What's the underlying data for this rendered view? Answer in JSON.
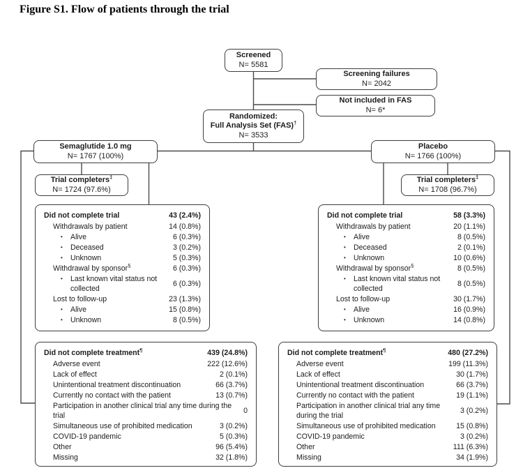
{
  "title": "Figure S1. Flow of patients through the trial",
  "flow": {
    "screened": {
      "title": "Screened",
      "n": "N= 5581"
    },
    "screening_failures": {
      "title": "Screening failures",
      "n": "N= 2042"
    },
    "not_in_fas": {
      "title": "Not included in FAS",
      "n": "N= 6*"
    },
    "randomized": {
      "title": "Randomized:",
      "subtitle": "Full Analysis Set (FAS)†",
      "n": "N= 3533"
    },
    "semaglutide": {
      "title": "Semaglutide 1.0 mg",
      "n": "N= 1767 (100%)"
    },
    "placebo": {
      "title": "Placebo",
      "n": "N= 1766 (100%)"
    },
    "completers_semaglutide": {
      "title": "Trial completers‡",
      "n": "N= 1724 (97.6%)"
    },
    "completers_placebo": {
      "title": "Trial completers‡",
      "n": "N= 1708 (96.7%)"
    },
    "not_complete_trial_semaglutide": {
      "header": {
        "label": "Did not complete trial",
        "value": "43 (2.4%)"
      },
      "rows": [
        {
          "label": "Withdrawals by patient",
          "value": "14 (0.8%)",
          "indent": 1
        },
        {
          "label": "Alive",
          "value": "6 (0.3%)",
          "indent": 2
        },
        {
          "label": "Deceased",
          "value": "3 (0.2%)",
          "indent": 2
        },
        {
          "label": "Unknown",
          "value": "5 (0.3%)",
          "indent": 2
        },
        {
          "label": "Withdrawal by sponsor§",
          "value": "6 (0.3%)",
          "indent": 1
        },
        {
          "label": "Last known vital status not collected",
          "value": "6 (0.3%)",
          "indent": 2
        },
        {
          "label": "Lost to follow-up",
          "value": "23 (1.3%)",
          "indent": 1
        },
        {
          "label": "Alive",
          "value": "15 (0.8%)",
          "indent": 2
        },
        {
          "label": "Unknown",
          "value": "8 (0.5%)",
          "indent": 2
        }
      ]
    },
    "not_complete_trial_placebo": {
      "header": {
        "label": "Did not complete trial",
        "value": "58 (3.3%)"
      },
      "rows": [
        {
          "label": "Withdrawals by patient",
          "value": "20 (1.1%)",
          "indent": 1
        },
        {
          "label": "Alive",
          "value": "8 (0.5%)",
          "indent": 2
        },
        {
          "label": "Deceased",
          "value": "2 (0.1%)",
          "indent": 2
        },
        {
          "label": "Unknown",
          "value": "10 (0.6%)",
          "indent": 2
        },
        {
          "label": "Withdrawal by sponsor§",
          "value": "8 (0.5%)",
          "indent": 1
        },
        {
          "label": "Last known vital status not collected",
          "value": "8 (0.5%)",
          "indent": 2
        },
        {
          "label": "Lost to follow-up",
          "value": "30 (1.7%)",
          "indent": 1
        },
        {
          "label": "Alive",
          "value": "16 (0.9%)",
          "indent": 2
        },
        {
          "label": "Unknown",
          "value": "14 (0.8%)",
          "indent": 2
        }
      ]
    },
    "not_complete_treatment_semaglutide": {
      "header": {
        "label": "Did not complete treatment¶",
        "value": "439 (24.8%)"
      },
      "rows": [
        {
          "label": "Adverse event",
          "value": "222 (12.6%)",
          "indent": 1
        },
        {
          "label": "Lack of effect",
          "value": "2 (0.1%)",
          "indent": 1
        },
        {
          "label": "Unintentional treatment discontinuation",
          "value": "66 (3.7%)",
          "indent": 1
        },
        {
          "label": "Currently no contact with the patient",
          "value": "13 (0.7%)",
          "indent": 1
        },
        {
          "label": "Participation in another clinical trial any time during the trial",
          "value": "0",
          "indent": 1
        },
        {
          "label": "Simultaneous use of prohibited medication",
          "value": "3 (0.2%)",
          "indent": 1
        },
        {
          "label": "COVID-19 pandemic",
          "value": "5 (0.3%)",
          "indent": 1
        },
        {
          "label": "Other",
          "value": "96 (5.4%)",
          "indent": 1
        },
        {
          "label": "Missing",
          "value": "32 (1.8%)",
          "indent": 1
        }
      ]
    },
    "not_complete_treatment_placebo": {
      "header": {
        "label": "Did not complete treatment¶",
        "value": "480 (27.2%)"
      },
      "rows": [
        {
          "label": "Adverse event",
          "value": "199 (11.3%)",
          "indent": 1
        },
        {
          "label": "Lack of effect",
          "value": "30 (1.7%)",
          "indent": 1
        },
        {
          "label": "Unintentional treatment discontinuation",
          "value": "66 (3.7%)",
          "indent": 1
        },
        {
          "label": "Currently no contact with the patient",
          "value": "19 (1.1%)",
          "indent": 1
        },
        {
          "label": "Participation in another clinical trial any time during the trial",
          "value": "3 (0.2%)",
          "indent": 1
        },
        {
          "label": "Simultaneous use of prohibited medication",
          "value": "15 (0.8%)",
          "indent": 1
        },
        {
          "label": "COVID-19 pandemic",
          "value": "3 (0.2%)",
          "indent": 1
        },
        {
          "label": "Other",
          "value": "111 (6.3%)",
          "indent": 1
        },
        {
          "label": "Missing",
          "value": "34 (1.9%)",
          "indent": 1
        }
      ]
    }
  }
}
